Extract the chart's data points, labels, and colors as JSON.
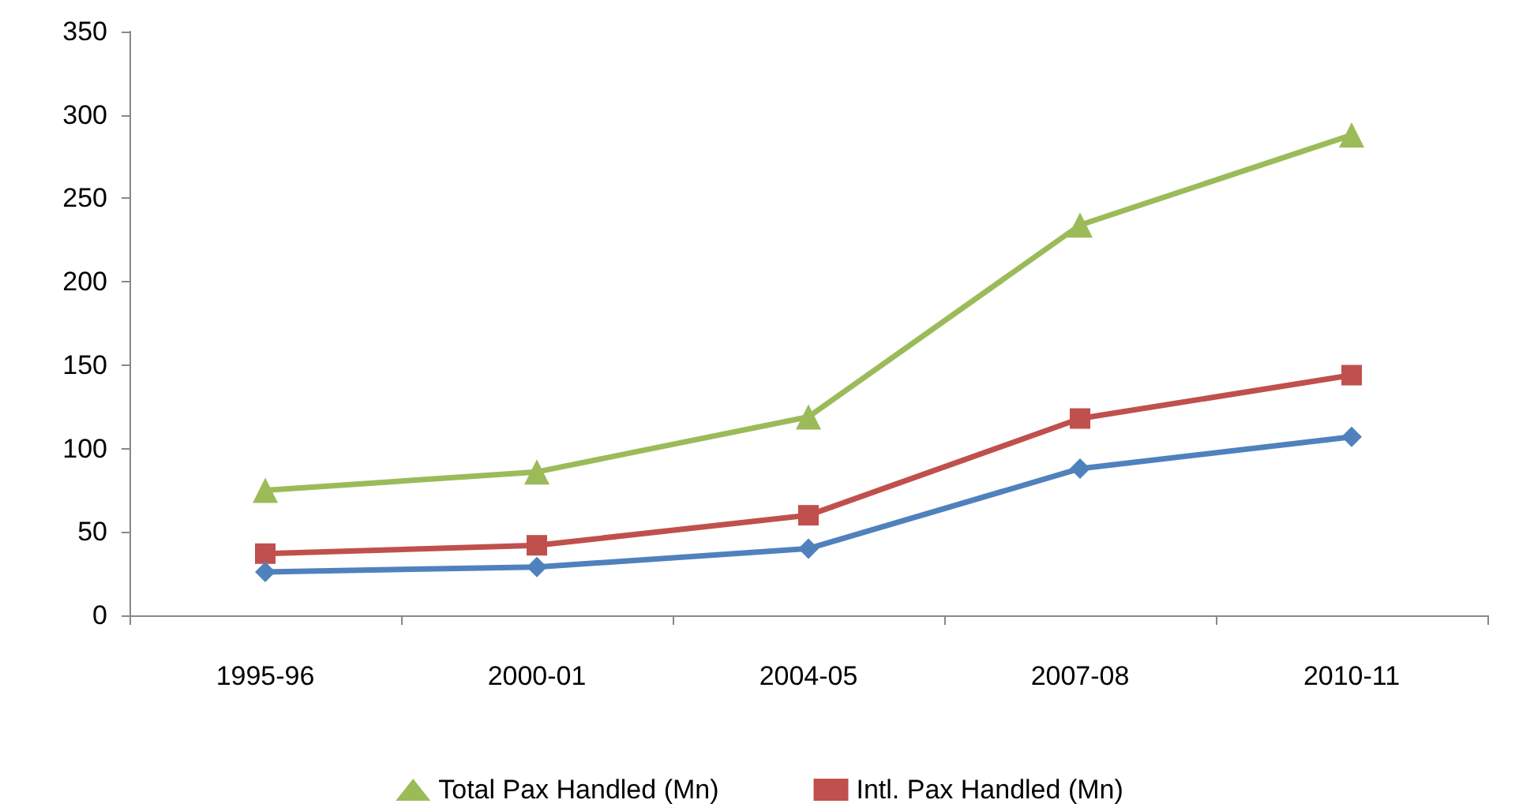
{
  "chart_data": {
    "type": "line",
    "categories": [
      "1995-96",
      "2000-01",
      "2004-05",
      "2007-08",
      "2010-11"
    ],
    "series": [
      {
        "name": "Total Pax Handled (Mn)",
        "color": "#9bbb59",
        "marker": "triangle",
        "values": [
          75,
          86,
          119,
          234,
          288
        ]
      },
      {
        "name": "Intl. Pax Handled (Mn)",
        "color": "#c0504d",
        "marker": "square",
        "values": [
          37,
          42,
          60,
          118,
          144
        ]
      },
      {
        "color": "#4f81bd",
        "marker": "diamond",
        "values": [
          26,
          29,
          40,
          88,
          107
        ]
      }
    ],
    "ylim": [
      0,
      350
    ],
    "yticks": [
      0,
      50,
      100,
      150,
      200,
      250,
      300,
      350
    ],
    "grid": false,
    "legend": "bottom"
  }
}
